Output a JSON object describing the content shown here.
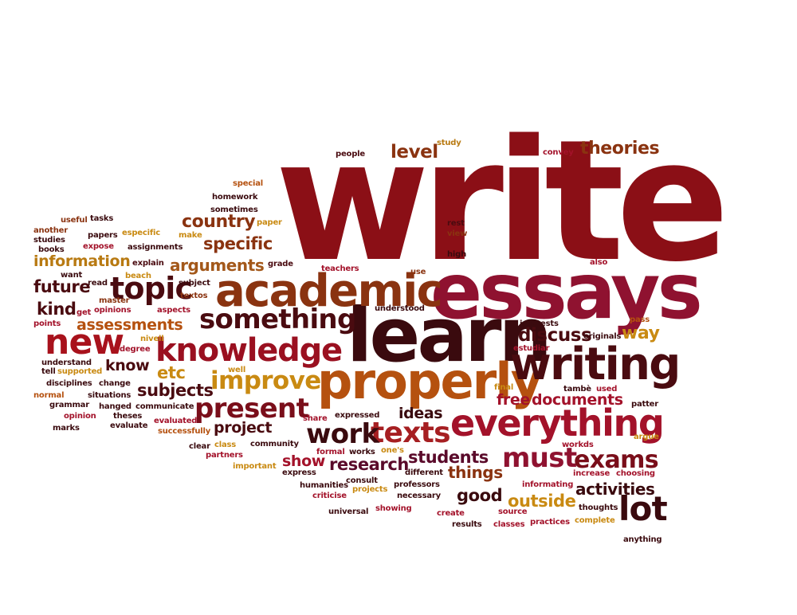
{
  "palette": {
    "dark_red": "#8b0f16",
    "maroon": "#4a0b10",
    "crimson": "#a3122a",
    "rust": "#b24a12",
    "gold": "#c98a12",
    "plum": "#5a0a2a"
  },
  "words": [
    {
      "text": "write",
      "color": "#8b0f16"
    },
    {
      "text": "essays",
      "color": "#8f1230"
    },
    {
      "text": "learn",
      "color": "#3a0a0e"
    },
    {
      "text": "academic",
      "color": "#8a3310"
    },
    {
      "text": "properly",
      "color": "#b5510f"
    },
    {
      "text": "writing",
      "color": "#4a0b10"
    },
    {
      "text": "everything",
      "color": "#a3122a"
    },
    {
      "text": "knowledge",
      "color": "#9a1020"
    },
    {
      "text": "something",
      "color": "#4a0b10"
    },
    {
      "text": "topic",
      "color": "#4a0b10"
    },
    {
      "text": "new",
      "color": "#a8121c"
    },
    {
      "text": "texts",
      "color": "#a61f22"
    },
    {
      "text": "work",
      "color": "#3a0a0e"
    },
    {
      "text": "present",
      "color": "#7a0e1a"
    },
    {
      "text": "improve",
      "color": "#c98a12"
    },
    {
      "text": "must",
      "color": "#8f1230"
    },
    {
      "text": "exams",
      "color": "#7a0e1a"
    },
    {
      "text": "lot",
      "color": "#3a0a0e"
    },
    {
      "text": "theories",
      "color": "#8a3310"
    },
    {
      "text": "level",
      "color": "#8a3310"
    },
    {
      "text": "country",
      "color": "#8a3310"
    },
    {
      "text": "specific",
      "color": "#8a3310"
    },
    {
      "text": "arguments",
      "color": "#a3581a"
    },
    {
      "text": "information",
      "color": "#b87a12"
    },
    {
      "text": "future",
      "color": "#4a0b10"
    },
    {
      "text": "kind",
      "color": "#4a0b10"
    },
    {
      "text": "assessments",
      "color": "#b5510f"
    },
    {
      "text": "discuss",
      "color": "#4a0b10"
    },
    {
      "text": "way",
      "color": "#c98a12"
    },
    {
      "text": "free",
      "color": "#a3122a"
    },
    {
      "text": "documents",
      "color": "#a3122a"
    },
    {
      "text": "subjects",
      "color": "#4a0b10"
    },
    {
      "text": "etc",
      "color": "#c98a12"
    },
    {
      "text": "know",
      "color": "#4a0b10"
    },
    {
      "text": "project",
      "color": "#4a0b10"
    },
    {
      "text": "ideas",
      "color": "#3a0a0e"
    },
    {
      "text": "students",
      "color": "#5a0a2a"
    },
    {
      "text": "things",
      "color": "#8a3310"
    },
    {
      "text": "research",
      "color": "#5a0a2a"
    },
    {
      "text": "show",
      "color": "#a3122a"
    },
    {
      "text": "good",
      "color": "#3a0a0e"
    },
    {
      "text": "outside",
      "color": "#c98a12"
    },
    {
      "text": "activities",
      "color": "#3a0a0e"
    },
    {
      "text": "people",
      "color": "#4a0b10"
    },
    {
      "text": "study",
      "color": "#b87a12"
    },
    {
      "text": "convey",
      "color": "#a3122a"
    },
    {
      "text": "special",
      "color": "#b5510f"
    },
    {
      "text": "homework",
      "color": "#3a0a0e"
    },
    {
      "text": "sometimes",
      "color": "#3a0a0e"
    },
    {
      "text": "useful",
      "color": "#8a3310"
    },
    {
      "text": "tasks",
      "color": "#3a0a0e"
    },
    {
      "text": "paper",
      "color": "#c98a12"
    },
    {
      "text": "rest",
      "color": "#4a0b10"
    },
    {
      "text": "view",
      "color": "#8a3310"
    },
    {
      "text": "another",
      "color": "#8a3310"
    },
    {
      "text": "studies",
      "color": "#3a0a0e"
    },
    {
      "text": "papers",
      "color": "#3a0a0e"
    },
    {
      "text": "especific",
      "color": "#c98a12"
    },
    {
      "text": "make",
      "color": "#c98a12"
    },
    {
      "text": "books",
      "color": "#3a0a0e"
    },
    {
      "text": "expose",
      "color": "#a3122a"
    },
    {
      "text": "assignments",
      "color": "#3a0a0e"
    },
    {
      "text": "explain",
      "color": "#4a0b10"
    },
    {
      "text": "grade",
      "color": "#4a0b10"
    },
    {
      "text": "teachers",
      "color": "#a3122a"
    },
    {
      "text": "high",
      "color": "#3a0a0e"
    },
    {
      "text": "also",
      "color": "#a3122a"
    },
    {
      "text": "want",
      "color": "#3a0a0e"
    },
    {
      "text": "beach",
      "color": "#c98a12"
    },
    {
      "text": "subject",
      "color": "#3a0a0e"
    },
    {
      "text": "use",
      "color": "#8a3310"
    },
    {
      "text": "read",
      "color": "#3a0a0e"
    },
    {
      "text": "master",
      "color": "#8a3310"
    },
    {
      "text": "textos",
      "color": "#8a3310"
    },
    {
      "text": "get",
      "color": "#a3122a"
    },
    {
      "text": "opinions",
      "color": "#a3122a"
    },
    {
      "text": "aspects",
      "color": "#a3122a"
    },
    {
      "text": "understood",
      "color": "#3a0a0e"
    },
    {
      "text": "points",
      "color": "#a3122a"
    },
    {
      "text": "interests",
      "color": "#3a0a0e"
    },
    {
      "text": "pass",
      "color": "#b5510f"
    },
    {
      "text": "originals",
      "color": "#3a0a0e"
    },
    {
      "text": "nivell",
      "color": "#c98a12"
    },
    {
      "text": "degree",
      "color": "#a3122a"
    },
    {
      "text": "estudiar",
      "color": "#a3122a"
    },
    {
      "text": "understand",
      "color": "#3a0a0e"
    },
    {
      "text": "tell",
      "color": "#3a0a0e"
    },
    {
      "text": "supported",
      "color": "#c98a12"
    },
    {
      "text": "well",
      "color": "#c98a12"
    },
    {
      "text": "final",
      "color": "#c98a12"
    },
    {
      "text": "tambè",
      "color": "#3a0a0e"
    },
    {
      "text": "used",
      "color": "#a3122a"
    },
    {
      "text": "disciplines",
      "color": "#3a0a0e"
    },
    {
      "text": "change",
      "color": "#3a0a0e"
    },
    {
      "text": "normal",
      "color": "#b5510f"
    },
    {
      "text": "situations",
      "color": "#3a0a0e"
    },
    {
      "text": "grammar",
      "color": "#3a0a0e"
    },
    {
      "text": "hanged",
      "color": "#3a0a0e"
    },
    {
      "text": "communicate",
      "color": "#3a0a0e"
    },
    {
      "text": "patter",
      "color": "#3a0a0e"
    },
    {
      "text": "opinion",
      "color": "#a3122a"
    },
    {
      "text": "theses",
      "color": "#3a0a0e"
    },
    {
      "text": "evaluated",
      "color": "#a3122a"
    },
    {
      "text": "share",
      "color": "#a3122a"
    },
    {
      "text": "expressed",
      "color": "#3a0a0e"
    },
    {
      "text": "marks",
      "color": "#3a0a0e"
    },
    {
      "text": "evaluate",
      "color": "#3a0a0e"
    },
    {
      "text": "successfully",
      "color": "#b5510f"
    },
    {
      "text": "clear",
      "color": "#3a0a0e"
    },
    {
      "text": "class",
      "color": "#c98a12"
    },
    {
      "text": "community",
      "color": "#3a0a0e"
    },
    {
      "text": "formal",
      "color": "#a3122a"
    },
    {
      "text": "works",
      "color": "#3a0a0e"
    },
    {
      "text": "one's",
      "color": "#c98a12"
    },
    {
      "text": "workds",
      "color": "#a3122a"
    },
    {
      "text": "argue",
      "color": "#c98a12"
    },
    {
      "text": "partners",
      "color": "#a3122a"
    },
    {
      "text": "important",
      "color": "#c98a12"
    },
    {
      "text": "express",
      "color": "#3a0a0e"
    },
    {
      "text": "different",
      "color": "#3a0a0e"
    },
    {
      "text": "increase",
      "color": "#a3122a"
    },
    {
      "text": "choosing",
      "color": "#a3122a"
    },
    {
      "text": "consult",
      "color": "#3a0a0e"
    },
    {
      "text": "humanities",
      "color": "#3a0a0e"
    },
    {
      "text": "professors",
      "color": "#3a0a0e"
    },
    {
      "text": "informating",
      "color": "#a3122a"
    },
    {
      "text": "criticise",
      "color": "#a3122a"
    },
    {
      "text": "projects",
      "color": "#c98a12"
    },
    {
      "text": "necessary",
      "color": "#3a0a0e"
    },
    {
      "text": "thoughts",
      "color": "#3a0a0e"
    },
    {
      "text": "universal",
      "color": "#3a0a0e"
    },
    {
      "text": "showing",
      "color": "#a3122a"
    },
    {
      "text": "create",
      "color": "#a3122a"
    },
    {
      "text": "source",
      "color": "#a3122a"
    },
    {
      "text": "results",
      "color": "#3a0a0e"
    },
    {
      "text": "classes",
      "color": "#a3122a"
    },
    {
      "text": "practices",
      "color": "#a3122a"
    },
    {
      "text": "complete",
      "color": "#c98a12"
    },
    {
      "text": "anything",
      "color": "#3a0a0e"
    }
  ]
}
